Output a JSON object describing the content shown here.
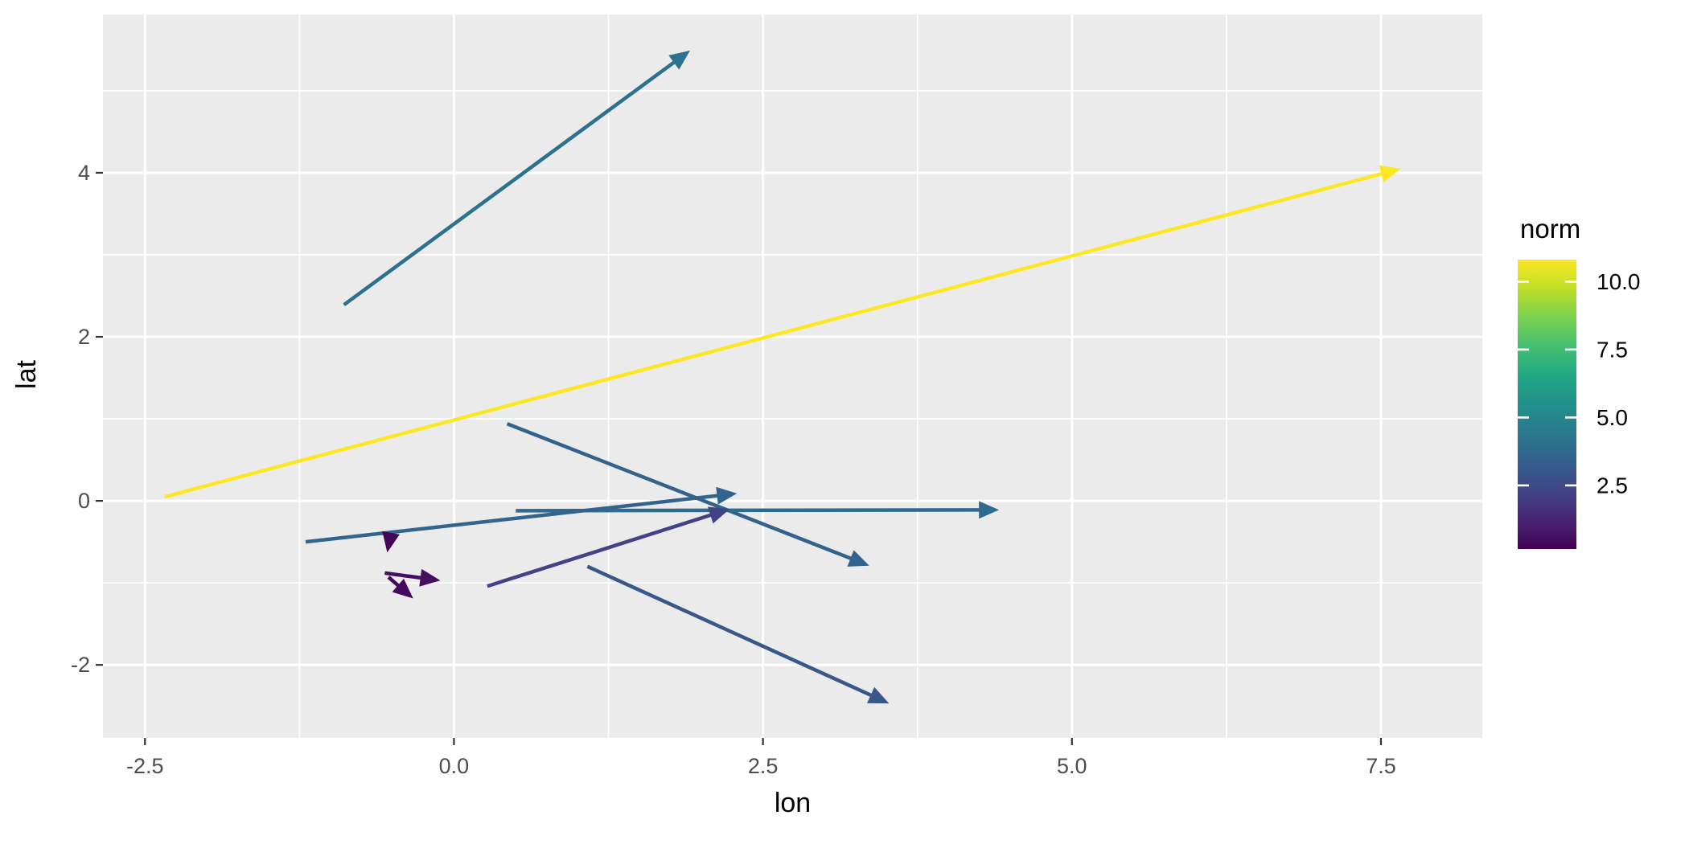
{
  "chart_data": {
    "type": "arrow-segment",
    "style": "ggplot2",
    "title": "",
    "xlabel": "lon",
    "ylabel": "lat",
    "x_axis": {
      "label": "lon",
      "tick_values": [
        -2.5,
        0.0,
        2.5,
        5.0,
        7.5
      ],
      "tick_labels": [
        "-2.5",
        "0.0",
        "2.5",
        "5.0",
        "7.5"
      ],
      "minor_values": [
        -1.25,
        1.25,
        3.75,
        6.25
      ],
      "range": [
        -2.84,
        8.32
      ]
    },
    "y_axis": {
      "label": "lat",
      "tick_values": [
        4,
        2,
        0,
        -2
      ],
      "tick_labels": [
        "4",
        "2",
        "0",
        "-2"
      ],
      "minor_values": [
        5,
        3,
        1,
        -1
      ],
      "range": [
        -2.89,
        5.93
      ]
    },
    "arrows": [
      {
        "x0": -0.89,
        "y0": 2.39,
        "x1": 1.91,
        "y1": 5.49,
        "norm": 4.18,
        "color": "#2c718e"
      },
      {
        "x0": -2.34,
        "y0": 0.05,
        "x1": 7.66,
        "y1": 4.05,
        "norm": 10.77,
        "color": "#fde725"
      },
      {
        "x0": 0.43,
        "y0": 0.94,
        "x1": 3.36,
        "y1": -0.79,
        "norm": 3.4,
        "color": "#33628d"
      },
      {
        "x0": 0.5,
        "y0": -0.12,
        "x1": 4.41,
        "y1": -0.11,
        "norm": 3.91,
        "color": "#2f6b8e"
      },
      {
        "x0": -1.2,
        "y0": -0.5,
        "x1": 2.29,
        "y1": 0.09,
        "norm": 3.54,
        "color": "#32648d"
      },
      {
        "x0": 1.08,
        "y0": -0.8,
        "x1": 3.52,
        "y1": -2.47,
        "norm": 2.96,
        "color": "#39578b"
      },
      {
        "x0": 0.27,
        "y0": -1.04,
        "x1": 2.23,
        "y1": -0.1,
        "norm": 2.17,
        "color": "#414386"
      },
      {
        "x0": -0.52,
        "y0": -0.47,
        "x1": -0.54,
        "y1": -0.63,
        "norm": 0.16,
        "color": "#440457"
      },
      {
        "x0": -0.56,
        "y0": -0.88,
        "x1": -0.11,
        "y1": -0.97,
        "norm": 0.46,
        "color": "#450e60"
      },
      {
        "x0": -0.53,
        "y0": -0.93,
        "x1": -0.33,
        "y1": -1.19,
        "norm": 0.33,
        "color": "#44095c"
      }
    ],
    "legend": {
      "title": "norm",
      "position": "right",
      "tick_values": [
        10.0,
        7.5,
        5.0,
        2.5
      ],
      "tick_labels": [
        "10.0",
        "7.5",
        "5.0",
        "2.5"
      ],
      "range": [
        0.16,
        10.81
      ],
      "colormap": "viridis",
      "gradient_stops": [
        {
          "offset": 0.0,
          "color": "#440154"
        },
        {
          "offset": 0.1,
          "color": "#482475"
        },
        {
          "offset": 0.2,
          "color": "#414487"
        },
        {
          "offset": 0.3,
          "color": "#355f8d"
        },
        {
          "offset": 0.4,
          "color": "#2a788e"
        },
        {
          "offset": 0.5,
          "color": "#21918c"
        },
        {
          "offset": 0.6,
          "color": "#22a884"
        },
        {
          "offset": 0.7,
          "color": "#44bf70"
        },
        {
          "offset": 0.8,
          "color": "#7ad151"
        },
        {
          "offset": 0.9,
          "color": "#bddf26"
        },
        {
          "offset": 1.0,
          "color": "#fde725"
        }
      ]
    },
    "colors": {
      "panel_background": "#ebebeb",
      "grid": "#ffffff",
      "tick_mark": "#333333",
      "tick_label": "#4d4d4d",
      "axis_title": "#000000",
      "legend_text": "#000000",
      "page_background": "#ffffff"
    },
    "grid": "on"
  }
}
